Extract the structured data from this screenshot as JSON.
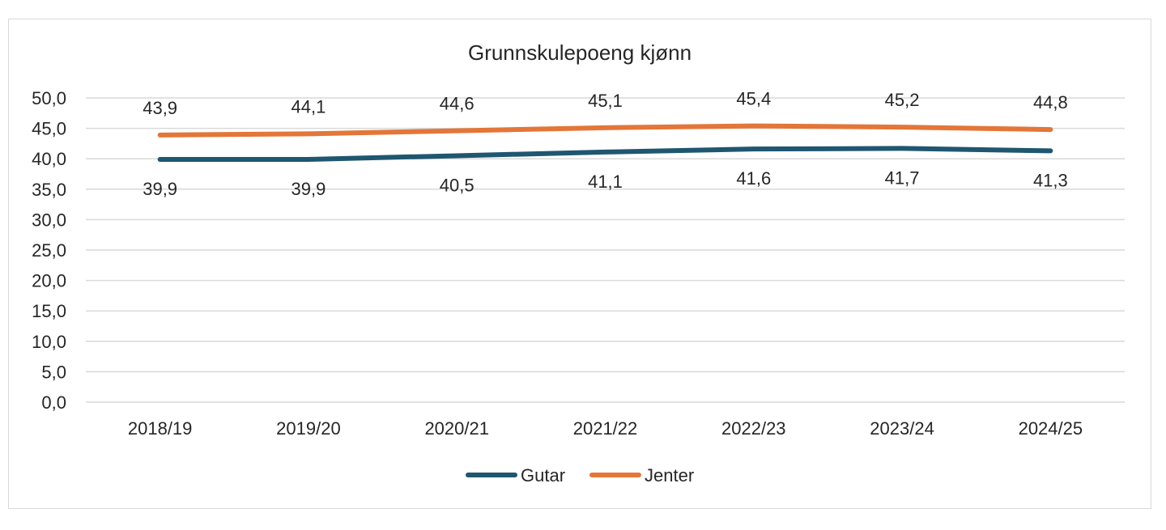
{
  "chart_data": {
    "type": "line",
    "title": "Grunnskulepoeng kjønn",
    "categories": [
      "2018/19",
      "2019/20",
      "2020/21",
      "2021/22",
      "2022/23",
      "2023/24",
      "2024/25"
    ],
    "series": [
      {
        "name": "Gutar",
        "color": "#1f5670",
        "values": [
          39.9,
          39.9,
          40.5,
          41.1,
          41.6,
          41.7,
          41.3
        ],
        "labels": [
          "39,9",
          "39,9",
          "40,5",
          "41,1",
          "41,6",
          "41,7",
          "41,3"
        ]
      },
      {
        "name": "Jenter",
        "color": "#e37638",
        "values": [
          43.9,
          44.1,
          44.6,
          45.1,
          45.4,
          45.2,
          44.8
        ],
        "labels": [
          "43,9",
          "44,1",
          "44,6",
          "45,1",
          "45,4",
          "45,2",
          "44,8"
        ]
      }
    ],
    "y_ticks": [
      "0,0",
      "5,0",
      "10,0",
      "15,0",
      "20,0",
      "25,0",
      "30,0",
      "35,0",
      "40,0",
      "45,0",
      "50,0"
    ],
    "ylim": [
      0,
      50
    ],
    "grid": true,
    "legend_position": "bottom"
  }
}
